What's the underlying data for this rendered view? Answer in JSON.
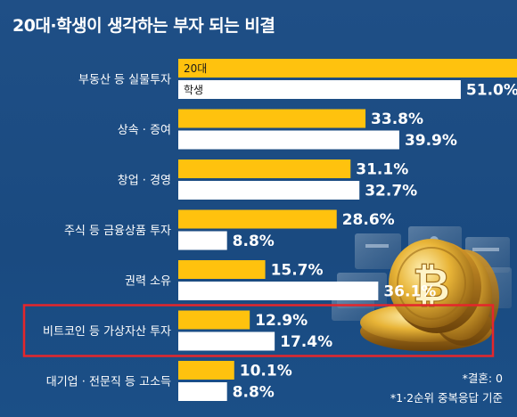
{
  "title": "20대·학생이 생각하는 부자 되는 비결",
  "notes": [
    "*결혼: 0",
    "*1·2순위 중복응답 기준"
  ],
  "colors": {
    "series_20s": "#ffc20e",
    "series_student": "#ffffff",
    "highlight": "#e5262b"
  },
  "highlighted_category": "비트코인 등 가상자산 투자",
  "chart_data": {
    "type": "bar",
    "orientation": "horizontal",
    "title": "20대·학생이 생각하는 부자 되는 비결",
    "categories": [
      "부동산 등 실물투자",
      "상속 · 증여",
      "창업 · 경영",
      "주식 등 금융상품 투자",
      "권력 소유",
      "비트코인 등 가상자산 투자",
      "대기업 · 전문직 등 고소득"
    ],
    "series": [
      {
        "name": "20대",
        "values": [
          63.5,
          33.8,
          31.1,
          28.6,
          15.7,
          12.9,
          10.1
        ]
      },
      {
        "name": "학생",
        "values": [
          51.0,
          39.9,
          32.7,
          8.8,
          36.1,
          17.4,
          8.8
        ]
      }
    ],
    "value_suffix": "%",
    "xlim": [
      0,
      70
    ],
    "legend": "inside-first-bars",
    "grid": false
  }
}
